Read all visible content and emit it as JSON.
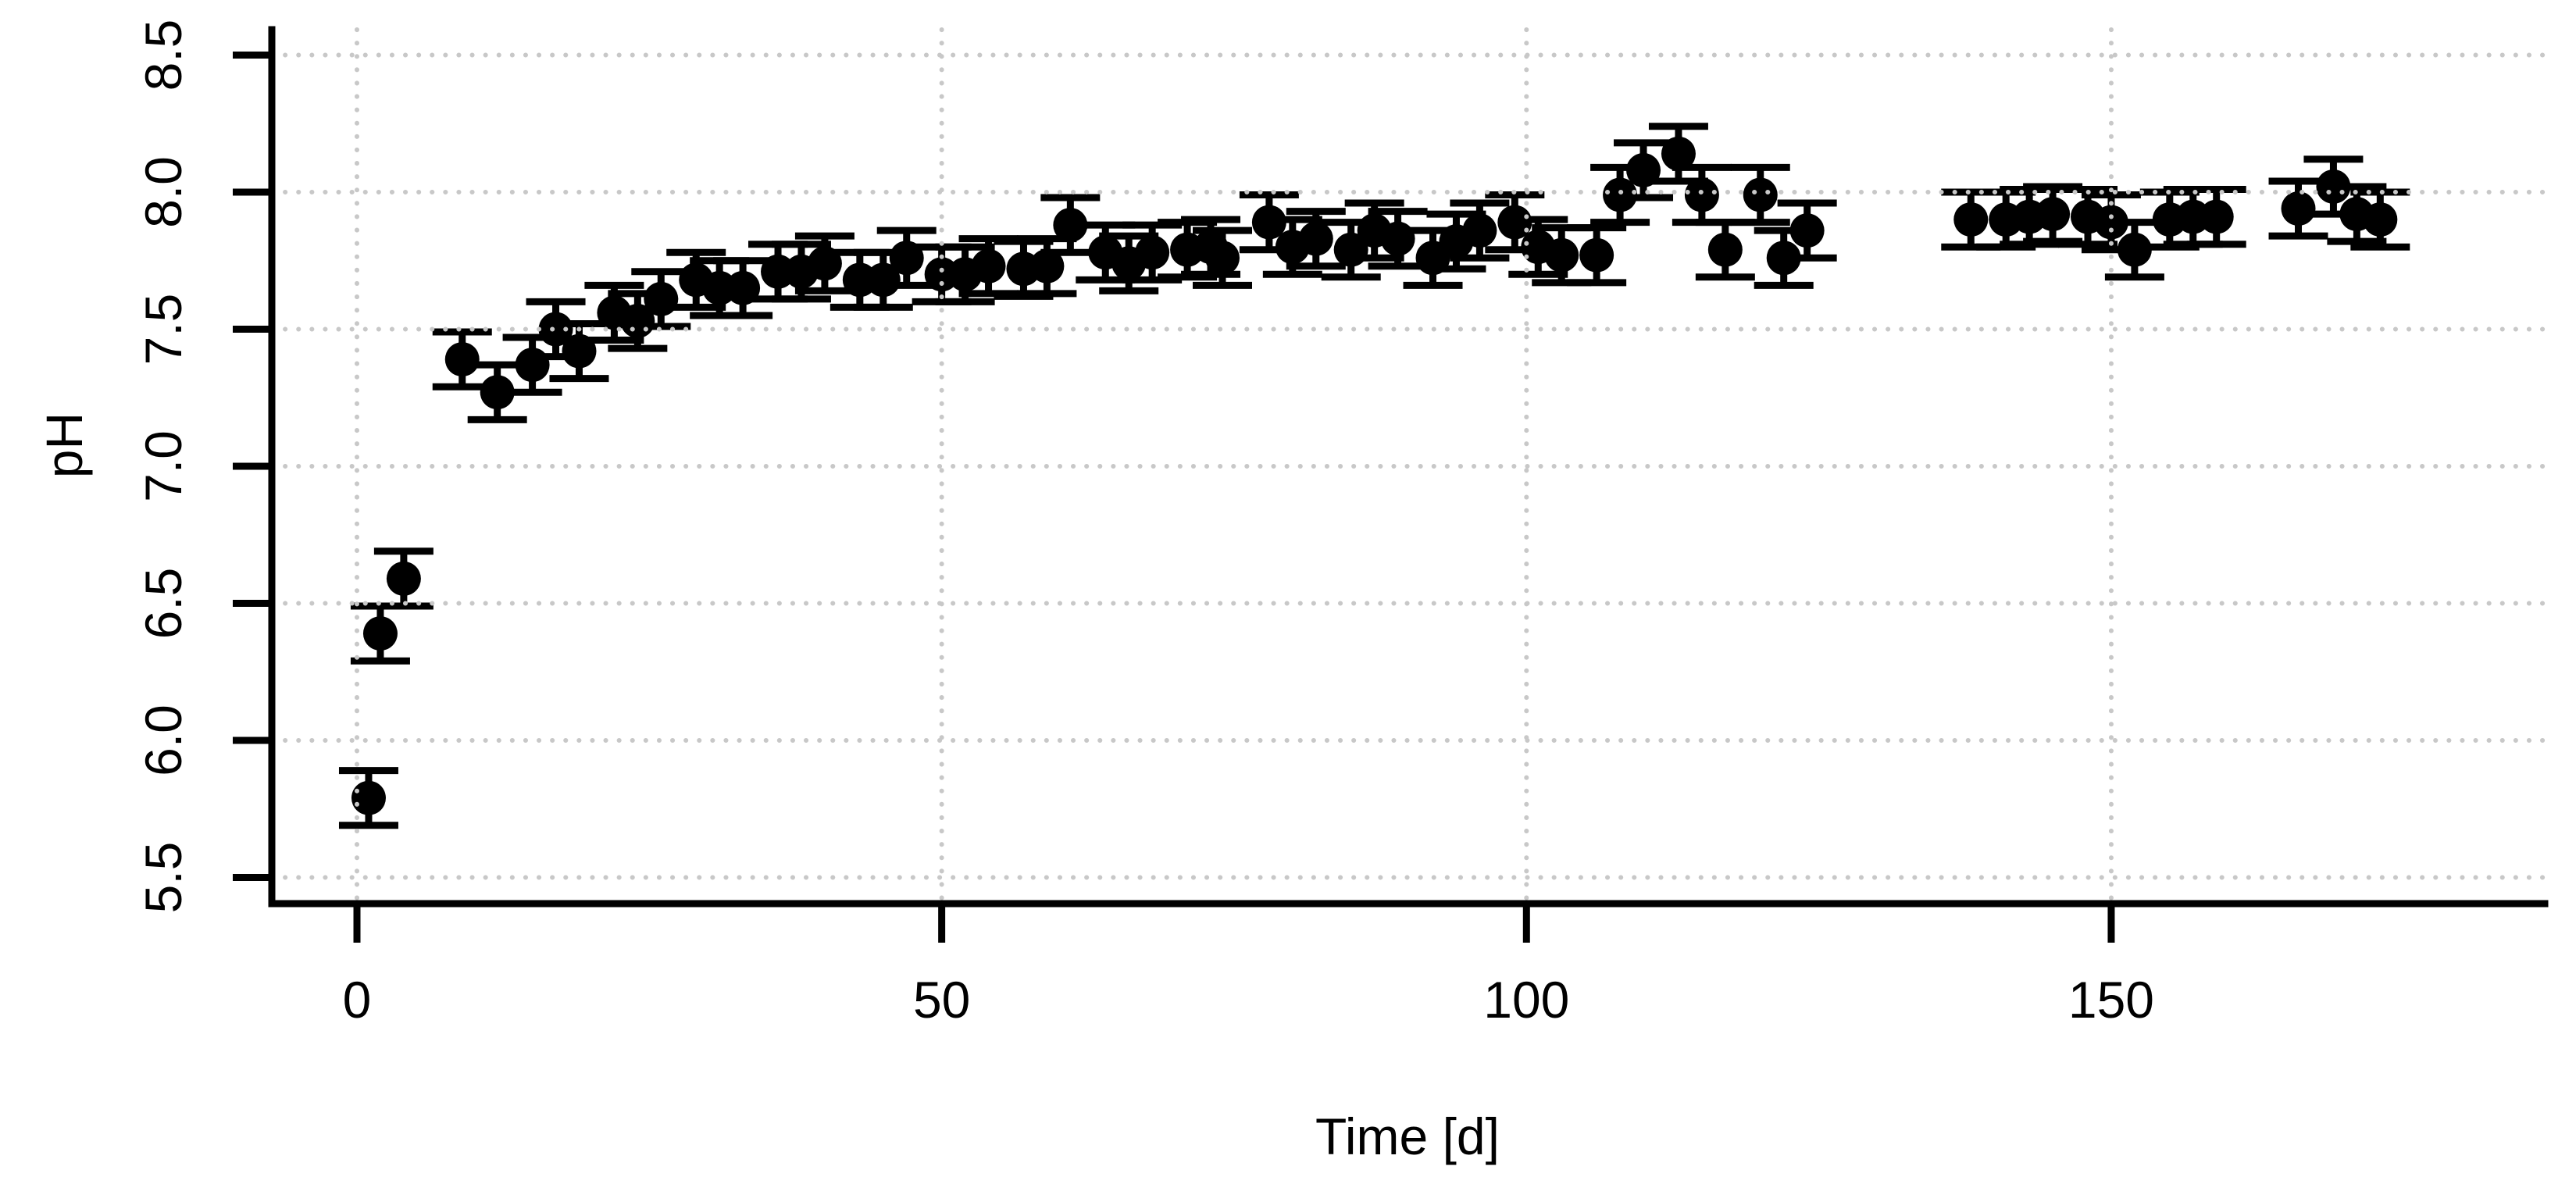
{
  "figure": {
    "background": "#ffffff",
    "point_color": "#000000",
    "grid_color": "#c8c8c8",
    "grid_style": "dotted",
    "marker": "filled-circle-with-error-bars"
  },
  "chart_data": {
    "type": "scatter",
    "title": "",
    "xlabel": "Time [d]",
    "ylabel": "pH",
    "xlim": [
      -7,
      187
    ],
    "ylim": [
      5.4,
      8.6
    ],
    "xticks": [
      0,
      50,
      100,
      150
    ],
    "xtick_labels": [
      "0",
      "50",
      "100",
      "150"
    ],
    "yticks": [
      5.5,
      6.0,
      6.5,
      7.0,
      7.5,
      8.0,
      8.5
    ],
    "ytick_labels": [
      "5.5",
      "6.0",
      "6.5",
      "7.0",
      "7.5",
      "8.0",
      "8.5"
    ],
    "grid": "dotted gridlines at all axis ticks, drawn over data",
    "legend": "none",
    "series": [
      {
        "name": "pH",
        "marker": "filled-circle",
        "color": "#000000",
        "y_error": 0.1,
        "points": [
          [
            1,
            5.79
          ],
          [
            2,
            6.39
          ],
          [
            4,
            6.59
          ],
          [
            9,
            7.39
          ],
          [
            12,
            7.27
          ],
          [
            15,
            7.37
          ],
          [
            17,
            7.5
          ],
          [
            19,
            7.42
          ],
          [
            22,
            7.56
          ],
          [
            24,
            7.53
          ],
          [
            26,
            7.61
          ],
          [
            29,
            7.68
          ],
          [
            31,
            7.65
          ],
          [
            33,
            7.65
          ],
          [
            36,
            7.71
          ],
          [
            38,
            7.71
          ],
          [
            40,
            7.74
          ],
          [
            43,
            7.68
          ],
          [
            45,
            7.68
          ],
          [
            47,
            7.76
          ],
          [
            50,
            7.7
          ],
          [
            52,
            7.7
          ],
          [
            54,
            7.73
          ],
          [
            57,
            7.72
          ],
          [
            59,
            7.73
          ],
          [
            61,
            7.88
          ],
          [
            64,
            7.78
          ],
          [
            66,
            7.74
          ],
          [
            68,
            7.78
          ],
          [
            71,
            7.79
          ],
          [
            73,
            7.8
          ],
          [
            74,
            7.76
          ],
          [
            78,
            7.89
          ],
          [
            80,
            7.8
          ],
          [
            82,
            7.83
          ],
          [
            85,
            7.79
          ],
          [
            87,
            7.86
          ],
          [
            89,
            7.83
          ],
          [
            92,
            7.76
          ],
          [
            94,
            7.82
          ],
          [
            96,
            7.86
          ],
          [
            99,
            7.89
          ],
          [
            101,
            7.8
          ],
          [
            103,
            7.77
          ],
          [
            106,
            7.77
          ],
          [
            108,
            7.99
          ],
          [
            110,
            8.08
          ],
          [
            113,
            8.14
          ],
          [
            115,
            7.99
          ],
          [
            117,
            7.79
          ],
          [
            120,
            7.99
          ],
          [
            122,
            7.76
          ],
          [
            124,
            7.86
          ],
          [
            138,
            7.9
          ],
          [
            141,
            7.9
          ],
          [
            143,
            7.91
          ],
          [
            145,
            7.92
          ],
          [
            148,
            7.91
          ],
          [
            150,
            7.89
          ],
          [
            152,
            7.79
          ],
          [
            155,
            7.9
          ],
          [
            157,
            7.91
          ],
          [
            159,
            7.91
          ],
          [
            166,
            7.94
          ],
          [
            169,
            8.02
          ],
          [
            171,
            7.92
          ],
          [
            173,
            7.9
          ]
        ]
      }
    ]
  }
}
